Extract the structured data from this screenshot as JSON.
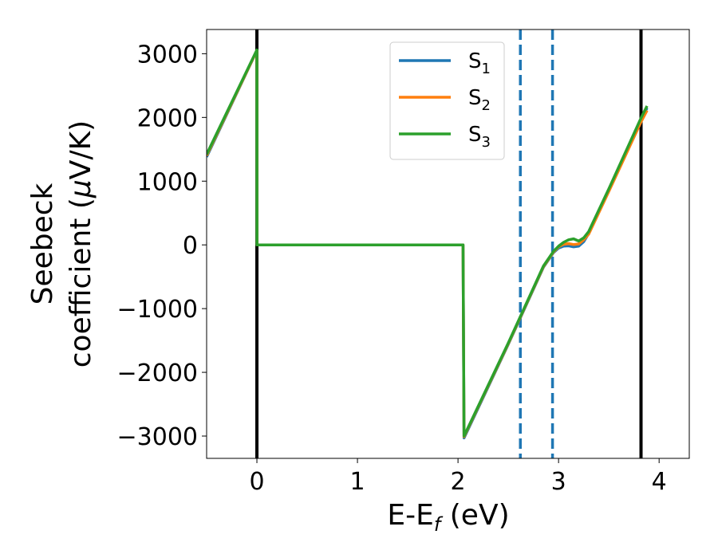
{
  "chart_data": {
    "type": "line",
    "xlabel": "E-E",
    "xlabel_sub": "f",
    "xlabel_unit": " (eV)",
    "ylabel_line1": "Seebeck",
    "ylabel_line2": "coefficient  (",
    "ylabel_mu": "μ",
    "ylabel_unit": "V/K)",
    "xlim": [
      -0.5,
      4.3
    ],
    "ylim": [
      -3350,
      3380
    ],
    "xticks": [
      0,
      1,
      2,
      3,
      4
    ],
    "xtick_labels": [
      "0",
      "1",
      "2",
      "3",
      "4"
    ],
    "yticks": [
      -3000,
      -2000,
      -1000,
      0,
      1000,
      2000,
      3000
    ],
    "ytick_labels": [
      "−3000",
      "−2000",
      "−1000",
      "0",
      "1000",
      "2000",
      "3000"
    ],
    "grid": false,
    "legend_position": "top-center",
    "vlines": [
      {
        "x": 0,
        "style": "solid",
        "color": "#000000"
      },
      {
        "x": 3.82,
        "style": "solid",
        "color": "#000000"
      },
      {
        "x": 2.62,
        "style": "dashed",
        "color": "#1f77b4"
      },
      {
        "x": 2.94,
        "style": "dashed",
        "color": "#1f77b4"
      }
    ],
    "series": [
      {
        "name": "S",
        "sub": "1",
        "color": "#1f77b4",
        "x": [
          -0.5,
          0.0,
          0.001,
          2.05,
          2.06,
          2.5,
          2.85,
          2.95,
          3.0,
          3.05,
          3.1,
          3.15,
          3.2,
          3.25,
          3.3,
          3.5,
          3.82,
          3.88
        ],
        "y": [
          1380,
          3050,
          0,
          0,
          -3030,
          -1560,
          -350,
          -120,
          -50,
          -20,
          -15,
          -30,
          -20,
          50,
          180,
          860,
          1960,
          2150
        ]
      },
      {
        "name": "S",
        "sub": "2",
        "color": "#ff7f0e",
        "x": [
          -0.5,
          0.0,
          0.001,
          2.05,
          2.06,
          2.5,
          2.85,
          2.95,
          3.0,
          3.05,
          3.1,
          3.15,
          3.2,
          3.25,
          3.3,
          3.5,
          3.82,
          3.88
        ],
        "y": [
          1400,
          3050,
          0,
          0,
          -3010,
          -1550,
          -340,
          -110,
          -30,
          10,
          20,
          5,
          15,
          80,
          170,
          840,
          1930,
          2110
        ]
      },
      {
        "name": "S",
        "sub": "3",
        "color": "#2ca02c",
        "x": [
          -0.5,
          0.0,
          0.001,
          2.05,
          2.06,
          2.5,
          2.85,
          2.95,
          3.0,
          3.05,
          3.1,
          3.15,
          3.2,
          3.25,
          3.3,
          3.5,
          3.82,
          3.88
        ],
        "y": [
          1420,
          3060,
          0,
          0,
          -3000,
          -1540,
          -330,
          -100,
          -20,
          40,
          80,
          95,
          60,
          110,
          210,
          880,
          1990,
          2180
        ]
      }
    ]
  }
}
